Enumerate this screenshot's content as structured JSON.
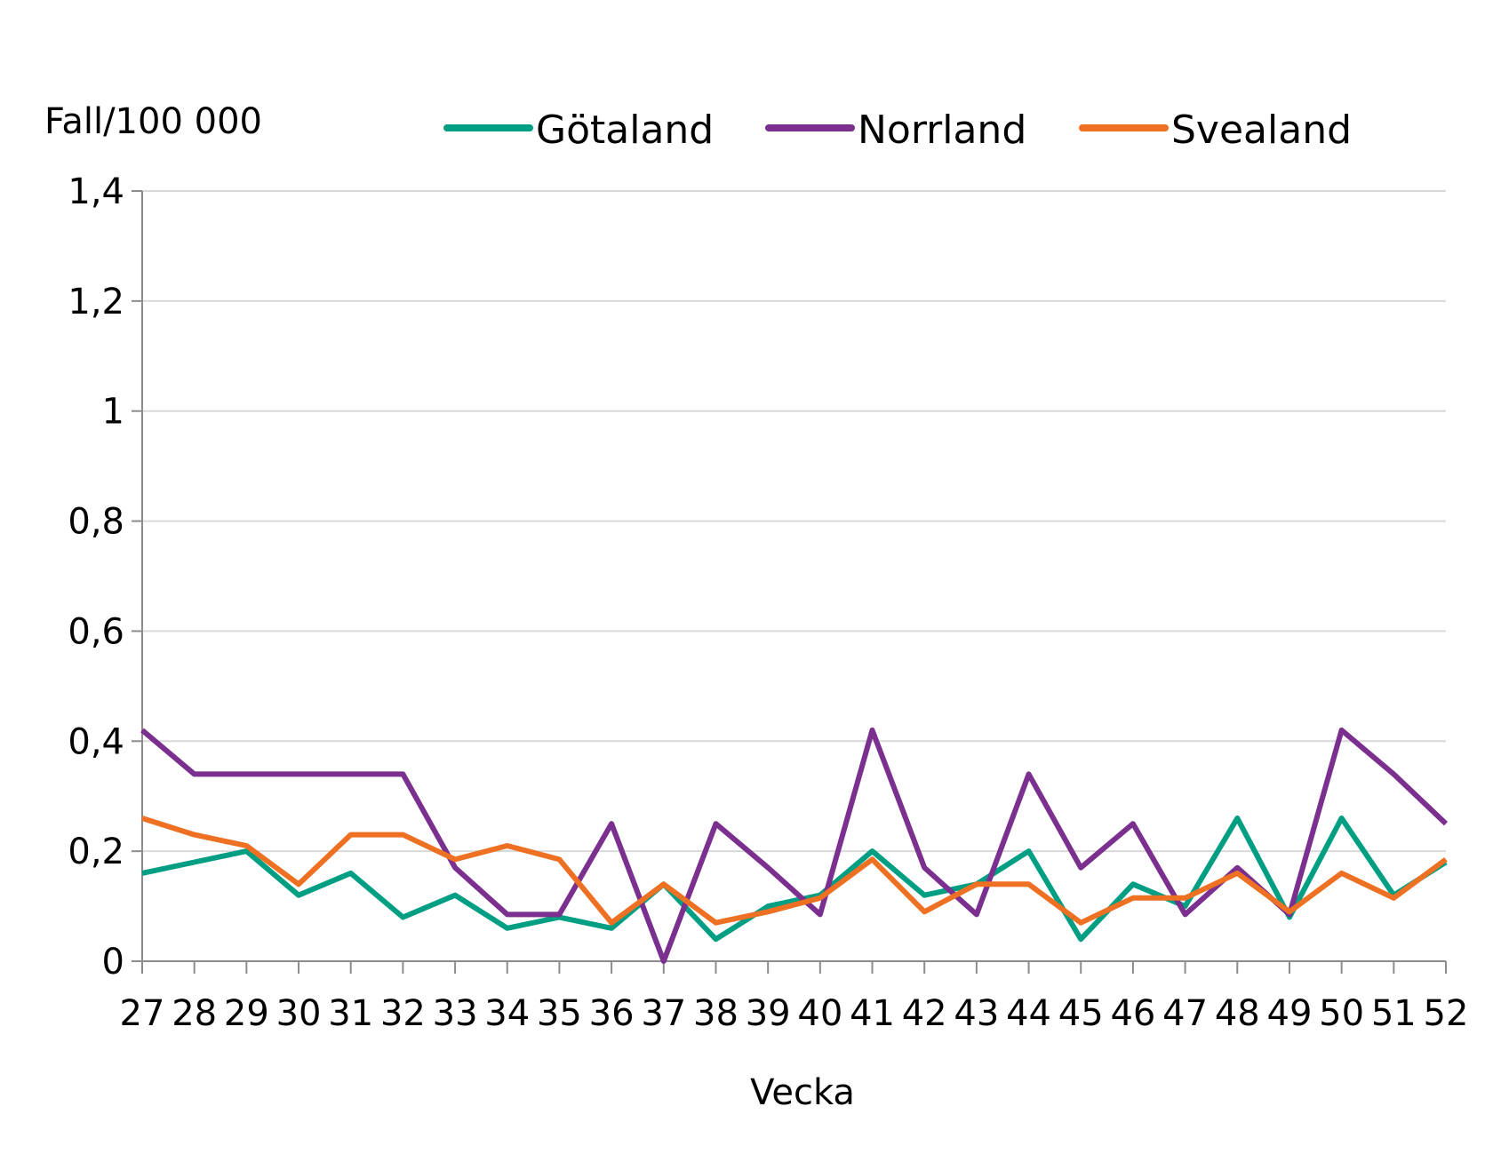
{
  "chart_data": {
    "type": "line",
    "ylabel": "Fall/100 000",
    "xlabel": "Vecka",
    "ylim": [
      0,
      1.4
    ],
    "yticks": [
      "0",
      "0,2",
      "0,4",
      "0,6",
      "0,8",
      "1",
      "1,2",
      "1,4"
    ],
    "ytick_values": [
      0,
      0.2,
      0.4,
      0.6,
      0.8,
      1.0,
      1.2,
      1.4
    ],
    "grid": true,
    "legend_position": "top",
    "categories": [
      "27",
      "28",
      "29",
      "30",
      "31",
      "32",
      "33",
      "34",
      "35",
      "36",
      "37",
      "38",
      "39",
      "40",
      "41",
      "42",
      "43",
      "44",
      "45",
      "46",
      "47",
      "48",
      "49",
      "50",
      "51",
      "52"
    ],
    "series": [
      {
        "name": "Götaland",
        "color": "#009e82",
        "values": [
          0.16,
          0.18,
          0.2,
          0.12,
          0.16,
          0.08,
          0.12,
          0.06,
          0.08,
          0.06,
          0.14,
          0.04,
          0.1,
          0.12,
          0.2,
          0.12,
          0.14,
          0.2,
          0.04,
          0.14,
          0.1,
          0.26,
          0.08,
          0.26,
          0.12,
          0.18
        ]
      },
      {
        "name": "Norrland",
        "color": "#7b2f8e",
        "values": [
          0.42,
          0.34,
          0.34,
          0.34,
          0.34,
          0.34,
          0.17,
          0.085,
          0.085,
          0.25,
          0.0,
          0.25,
          0.17,
          0.085,
          0.42,
          0.17,
          0.085,
          0.34,
          0.17,
          0.25,
          0.085,
          0.17,
          0.085,
          0.42,
          0.34,
          0.25
        ]
      },
      {
        "name": "Svealand",
        "color": "#ee7023",
        "values": [
          0.26,
          0.23,
          0.21,
          0.14,
          0.23,
          0.23,
          0.185,
          0.21,
          0.185,
          0.07,
          0.14,
          0.07,
          0.09,
          0.115,
          0.185,
          0.09,
          0.14,
          0.14,
          0.07,
          0.115,
          0.115,
          0.16,
          0.09,
          0.16,
          0.115,
          0.185
        ]
      }
    ]
  }
}
